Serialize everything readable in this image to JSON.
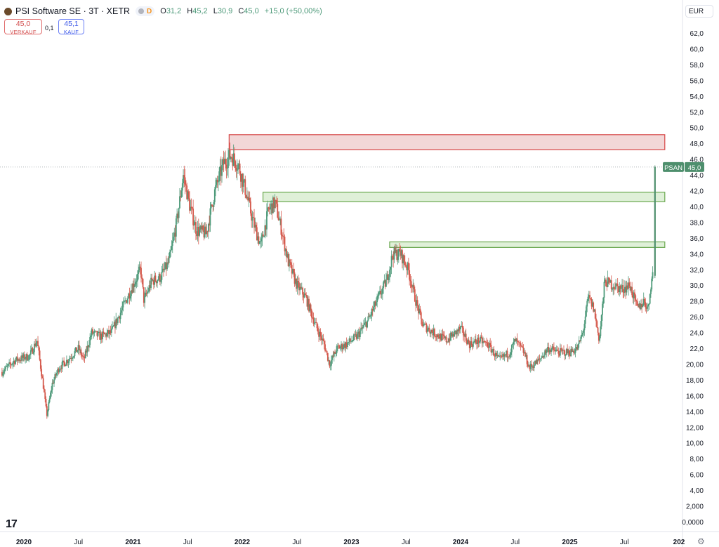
{
  "header": {
    "title": "PSI Software SE · 3T · XETR",
    "pill_label": "D",
    "ohlc": [
      {
        "key": "O",
        "value": "31,2"
      },
      {
        "key": "H",
        "value": "45,2"
      },
      {
        "key": "L",
        "value": "30,9"
      },
      {
        "key": "C",
        "value": "45,0"
      }
    ],
    "change": "+15,0 (+50,00%)"
  },
  "trade": {
    "sell_price": "45,0",
    "sell_label": "VERKAUF",
    "spread": "0,1",
    "buy_price": "45,1",
    "buy_label": "KAUF"
  },
  "currency": "EUR",
  "colors": {
    "up": "#4e9a7a",
    "down": "#d4574a",
    "resistance_fill": "#f2d7d7",
    "resistance_border": "#d64545",
    "support_fill": "#dff0d8",
    "support_border": "#6aa84f",
    "price_tag": "#4e8f6d"
  },
  "chart_data": {
    "type": "candlestick",
    "symbol": "PSAN",
    "last_price": 45.0,
    "last_price_label": "45,0",
    "ylim": [
      0,
      63
    ],
    "y_ticks": [
      "62,0",
      "60,0",
      "58,0",
      "56,0",
      "54,0",
      "52,0",
      "50,0",
      "48,0",
      "46,0",
      "44,0",
      "42,0",
      "40,0",
      "38,0",
      "36,0",
      "34,0",
      "32,0",
      "30,0",
      "28,0",
      "26,0",
      "24,0",
      "22,0",
      "20,00",
      "18,00",
      "16,00",
      "14,00",
      "12,00",
      "10,00",
      "8,00",
      "6,00",
      "4,00",
      "2,000",
      "0,0000"
    ],
    "x_ticks": [
      {
        "label": "2020",
        "t": 2020.0,
        "bold": true
      },
      {
        "label": "Jul",
        "t": 2020.5
      },
      {
        "label": "2021",
        "t": 2021.0,
        "bold": true
      },
      {
        "label": "Jul",
        "t": 2021.5
      },
      {
        "label": "2022",
        "t": 2022.0,
        "bold": true
      },
      {
        "label": "Jul",
        "t": 2022.5
      },
      {
        "label": "2023",
        "t": 2023.0,
        "bold": true
      },
      {
        "label": "Jul",
        "t": 2023.5
      },
      {
        "label": "2024",
        "t": 2024.0,
        "bold": true
      },
      {
        "label": "Jul",
        "t": 2024.5
      },
      {
        "label": "2025",
        "t": 2025.0,
        "bold": true
      },
      {
        "label": "Jul",
        "t": 2025.5
      },
      {
        "label": "202",
        "t": 2026.0,
        "bold": true
      }
    ],
    "xlim": [
      2019.8,
      2026.0
    ],
    "price_path": [
      [
        2019.8,
        19.0
      ],
      [
        2019.92,
        20.5
      ],
      [
        2020.05,
        21.0
      ],
      [
        2020.12,
        23.0
      ],
      [
        2020.18,
        17.0
      ],
      [
        2020.21,
        13.5
      ],
      [
        2020.26,
        17.5
      ],
      [
        2020.32,
        19.5
      ],
      [
        2020.4,
        20.5
      ],
      [
        2020.5,
        22.0
      ],
      [
        2020.55,
        20.5
      ],
      [
        2020.62,
        24.0
      ],
      [
        2020.7,
        23.5
      ],
      [
        2020.8,
        24.0
      ],
      [
        2020.9,
        27.0
      ],
      [
        2021.0,
        30.0
      ],
      [
        2021.07,
        32.0
      ],
      [
        2021.1,
        28.0
      ],
      [
        2021.17,
        30.5
      ],
      [
        2021.25,
        31.0
      ],
      [
        2021.33,
        33.0
      ],
      [
        2021.4,
        38.0
      ],
      [
        2021.46,
        44.0
      ],
      [
        2021.52,
        40.0
      ],
      [
        2021.58,
        37.0
      ],
      [
        2021.67,
        36.5
      ],
      [
        2021.75,
        42.0
      ],
      [
        2021.83,
        45.5
      ],
      [
        2021.9,
        46.5
      ],
      [
        2021.97,
        45.0
      ],
      [
        2022.03,
        42.0
      ],
      [
        2022.1,
        38.0
      ],
      [
        2022.17,
        35.0
      ],
      [
        2022.24,
        39.5
      ],
      [
        2022.3,
        40.5
      ],
      [
        2022.36,
        37.0
      ],
      [
        2022.42,
        33.0
      ],
      [
        2022.5,
        30.0
      ],
      [
        2022.58,
        28.5
      ],
      [
        2022.67,
        25.0
      ],
      [
        2022.75,
        22.5
      ],
      [
        2022.8,
        20.0
      ],
      [
        2022.87,
        22.0
      ],
      [
        2022.95,
        22.5
      ],
      [
        2023.05,
        23.5
      ],
      [
        2023.15,
        25.5
      ],
      [
        2023.25,
        28.5
      ],
      [
        2023.32,
        30.5
      ],
      [
        2023.38,
        34.0
      ],
      [
        2023.45,
        34.0
      ],
      [
        2023.52,
        32.0
      ],
      [
        2023.58,
        28.5
      ],
      [
        2023.65,
        25.0
      ],
      [
        2023.75,
        24.0
      ],
      [
        2023.87,
        23.0
      ],
      [
        2024.0,
        24.5
      ],
      [
        2024.08,
        22.5
      ],
      [
        2024.17,
        23.0
      ],
      [
        2024.25,
        22.5
      ],
      [
        2024.35,
        20.5
      ],
      [
        2024.45,
        21.5
      ],
      [
        2024.5,
        23.0
      ],
      [
        2024.58,
        21.5
      ],
      [
        2024.63,
        19.5
      ],
      [
        2024.72,
        20.5
      ],
      [
        2024.8,
        22.0
      ],
      [
        2024.9,
        21.5
      ],
      [
        2025.0,
        21.5
      ],
      [
        2025.07,
        22.0
      ],
      [
        2025.12,
        24.0
      ],
      [
        2025.17,
        28.5
      ],
      [
        2025.22,
        27.0
      ],
      [
        2025.27,
        23.0
      ],
      [
        2025.32,
        30.5
      ],
      [
        2025.4,
        30.0
      ],
      [
        2025.48,
        29.5
      ],
      [
        2025.55,
        30.0
      ],
      [
        2025.62,
        27.0
      ],
      [
        2025.68,
        28.0
      ],
      [
        2025.72,
        27.0
      ],
      [
        2025.74,
        30.0
      ],
      [
        2025.76,
        31.5
      ],
      [
        2025.78,
        45.0
      ]
    ],
    "zones": [
      {
        "type": "resistance",
        "t_start": 2021.88,
        "t_end": 2025.87,
        "y_low": 47.2,
        "y_high": 49.1
      },
      {
        "type": "support",
        "t_start": 2022.19,
        "t_end": 2025.87,
        "y_low": 40.6,
        "y_high": 41.8
      },
      {
        "type": "support",
        "t_start": 2023.35,
        "t_end": 2025.87,
        "y_low": 34.8,
        "y_high": 35.5
      }
    ]
  }
}
